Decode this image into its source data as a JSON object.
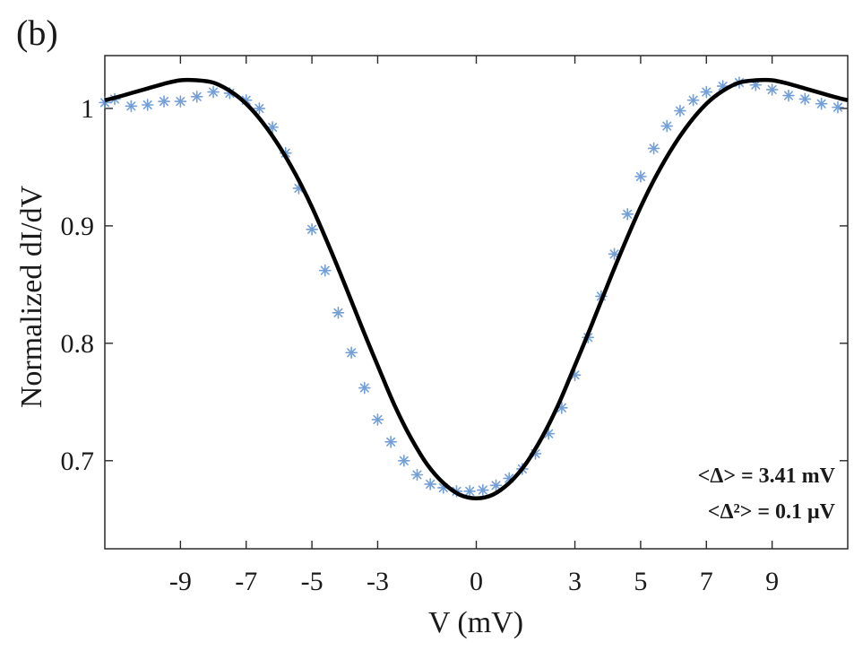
{
  "panel_label": "(b)",
  "chart_data": {
    "type": "line",
    "xlabel": "V (mV)",
    "ylabel": "Normalized dI/dV",
    "xlim": [
      -11.3,
      11.3
    ],
    "ylim": [
      0.625,
      1.045
    ],
    "xticks": [
      -9,
      -7,
      -5,
      -3,
      0,
      3,
      5,
      7,
      9
    ],
    "xtick_labels": [
      "-9",
      "-7",
      "-5",
      "-3",
      "0",
      "3",
      "5",
      "7",
      "9"
    ],
    "yticks": [
      0.7,
      0.8,
      0.9,
      1.0
    ],
    "ytick_labels": [
      "0.7",
      "0.8",
      "0.9",
      "1"
    ],
    "grid": false,
    "annotations": [
      "<Δ> = 3.41 mV",
      "<Δ²> = 0.1 μV"
    ],
    "series": [
      {
        "kind": "markers",
        "marker": "asterisk",
        "color": "#5b8fd0",
        "x": [
          -11.3,
          -11.0,
          -10.5,
          -10.0,
          -9.5,
          -9.0,
          -8.5,
          -8.0,
          -7.5,
          -7.0,
          -6.6,
          -6.2,
          -5.8,
          -5.4,
          -5.0,
          -4.6,
          -4.2,
          -3.8,
          -3.4,
          -3.0,
          -2.6,
          -2.2,
          -1.8,
          -1.4,
          -1.0,
          -0.6,
          -0.2,
          0.2,
          0.6,
          1.0,
          1.4,
          1.8,
          2.2,
          2.6,
          3.0,
          3.4,
          3.8,
          4.2,
          4.6,
          5.0,
          5.4,
          5.8,
          6.2,
          6.6,
          7.0,
          7.5,
          8.0,
          8.5,
          9.0,
          9.5,
          10.0,
          10.5,
          11.0
        ],
        "y": [
          1.005,
          1.008,
          1.002,
          1.003,
          1.006,
          1.006,
          1.01,
          1.014,
          1.013,
          1.007,
          1.0,
          0.984,
          0.962,
          0.932,
          0.897,
          0.862,
          0.826,
          0.792,
          0.762,
          0.735,
          0.716,
          0.7,
          0.688,
          0.68,
          0.677,
          0.674,
          0.674,
          0.675,
          0.679,
          0.685,
          0.693,
          0.706,
          0.723,
          0.745,
          0.773,
          0.805,
          0.84,
          0.876,
          0.91,
          0.942,
          0.966,
          0.985,
          0.998,
          1.007,
          1.014,
          1.019,
          1.022,
          1.02,
          1.016,
          1.011,
          1.008,
          1.004,
          1.001
        ]
      },
      {
        "kind": "line",
        "color": "#000000",
        "x": [
          -11.3,
          -11.0,
          -10.5,
          -10.0,
          -9.5,
          -9.0,
          -8.5,
          -8.0,
          -7.5,
          -7.0,
          -6.5,
          -6.0,
          -5.5,
          -5.0,
          -4.5,
          -4.0,
          -3.5,
          -3.0,
          -2.5,
          -2.0,
          -1.5,
          -1.0,
          -0.5,
          0.0,
          0.5,
          1.0,
          1.5,
          2.0,
          2.5,
          3.0,
          3.5,
          4.0,
          4.5,
          5.0,
          5.5,
          6.0,
          6.5,
          7.0,
          7.5,
          8.0,
          8.5,
          9.0,
          9.5,
          10.0,
          10.5,
          11.0,
          11.3
        ],
        "y": [
          1.007,
          1.009,
          1.013,
          1.017,
          1.021,
          1.024,
          1.024,
          1.022,
          1.015,
          1.004,
          0.988,
          0.968,
          0.944,
          0.916,
          0.884,
          0.85,
          0.815,
          0.781,
          0.748,
          0.72,
          0.697,
          0.681,
          0.671,
          0.668,
          0.671,
          0.681,
          0.697,
          0.72,
          0.748,
          0.781,
          0.815,
          0.85,
          0.884,
          0.916,
          0.944,
          0.968,
          0.988,
          1.004,
          1.015,
          1.022,
          1.024,
          1.024,
          1.021,
          1.017,
          1.013,
          1.009,
          1.007
        ]
      }
    ]
  }
}
